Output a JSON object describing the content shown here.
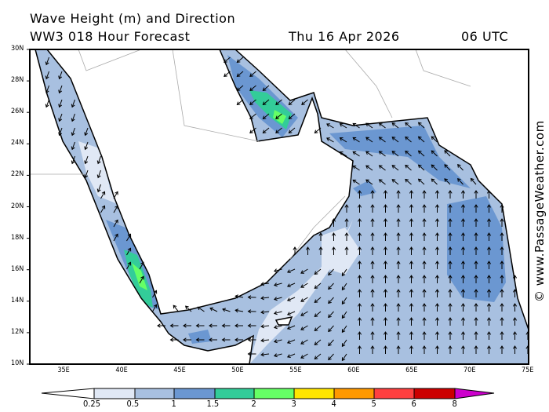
{
  "header": {
    "title": "Wave Height (m) and Direction",
    "subtitle": "WW3 018 Hour Forecast",
    "date": "Thu 16 Apr 2026",
    "time": "06 UTC"
  },
  "map": {
    "lon_range": [
      32,
      75
    ],
    "lat_range": [
      10,
      30
    ],
    "lat_labels": [
      "30N",
      "28N",
      "26N",
      "24N",
      "22N",
      "20N",
      "18N",
      "16N",
      "14N",
      "12N",
      "10N"
    ],
    "lon_labels": [
      "35E",
      "40E",
      "45E",
      "50E",
      "55E",
      "60E",
      "65E",
      "70E",
      "75E"
    ],
    "dominant_wave_direction": "toward north (Arabian Sea)",
    "colors": {
      "land": "#ffffff",
      "coast": "#000000",
      "border": "#aaaaaa"
    }
  },
  "legend": {
    "labels": [
      "0.25",
      "0.5",
      "1",
      "1.5",
      "2",
      "3",
      "4",
      "5",
      "6",
      "8"
    ],
    "colors": [
      "#ffffff",
      "#e0e8f5",
      "#a8c0e0",
      "#6b97d1",
      "#33cc99",
      "#66ff66",
      "#ffe600",
      "#ff9900",
      "#ff4040",
      "#cc0000",
      "#cc00cc"
    ]
  },
  "credit": "© www.PassageWeather.com"
}
